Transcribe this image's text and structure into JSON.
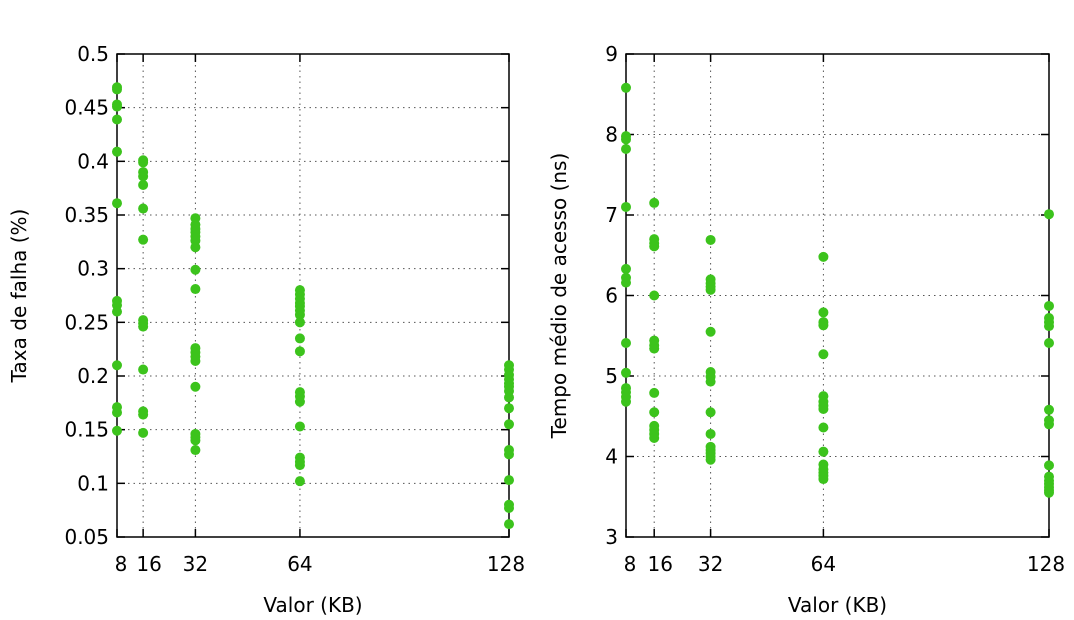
{
  "chart_data": [
    {
      "type": "scatter",
      "xlabel": "Valor (KB)",
      "ylabel": "Taxa de falha (%)",
      "xticks": [
        8,
        16,
        32,
        64,
        128
      ],
      "xlim": [
        8,
        128
      ],
      "ylim": [
        0.05,
        0.5
      ],
      "yticks": [
        0.05,
        0.1,
        0.15,
        0.2,
        0.25,
        0.3,
        0.35,
        0.4,
        0.45,
        0.5
      ],
      "ytick_labels": [
        "0.05",
        "0.1",
        "0.15",
        "0.2",
        "0.25",
        "0.3",
        "0.35",
        "0.4",
        "0.45",
        "0.5"
      ],
      "grid": true,
      "marker_color": "#3cc31c",
      "points": [
        {
          "x": 8,
          "ys": [
            0.469,
            0.467,
            0.453,
            0.451,
            0.439,
            0.409,
            0.361,
            0.27,
            0.266,
            0.26,
            0.21,
            0.171,
            0.166,
            0.149
          ]
        },
        {
          "x": 16,
          "ys": [
            0.401,
            0.399,
            0.39,
            0.386,
            0.378,
            0.356,
            0.327,
            0.252,
            0.249,
            0.246,
            0.206,
            0.167,
            0.164,
            0.147
          ]
        },
        {
          "x": 32,
          "ys": [
            0.347,
            0.341,
            0.337,
            0.334,
            0.33,
            0.326,
            0.32,
            0.299,
            0.281,
            0.226,
            0.222,
            0.218,
            0.214,
            0.19,
            0.146,
            0.143,
            0.14,
            0.131
          ]
        },
        {
          "x": 64,
          "ys": [
            0.28,
            0.276,
            0.272,
            0.268,
            0.265,
            0.261,
            0.257,
            0.25,
            0.235,
            0.223,
            0.185,
            0.181,
            0.176,
            0.153,
            0.124,
            0.12,
            0.117,
            0.102
          ]
        },
        {
          "x": 128,
          "ys": [
            0.21,
            0.206,
            0.201,
            0.197,
            0.193,
            0.19,
            0.186,
            0.18,
            0.17,
            0.155,
            0.131,
            0.127,
            0.103,
            0.08,
            0.077,
            0.062
          ]
        }
      ]
    },
    {
      "type": "scatter",
      "xlabel": "Valor (KB)",
      "ylabel": "Tempo médio de acesso (ns)",
      "xticks": [
        8,
        16,
        32,
        64,
        128
      ],
      "xlim": [
        8,
        128
      ],
      "ylim": [
        3,
        9
      ],
      "yticks": [
        3,
        4,
        5,
        6,
        7,
        8,
        9
      ],
      "ytick_labels": [
        "3",
        "4",
        "5",
        "6",
        "7",
        "8",
        "9"
      ],
      "grid": true,
      "marker_color": "#3cc31c",
      "points": [
        {
          "x": 8,
          "ys": [
            8.58,
            7.98,
            7.94,
            7.82,
            7.1,
            6.33,
            6.22,
            6.16,
            5.41,
            5.04,
            4.85,
            4.8,
            4.74,
            4.68
          ]
        },
        {
          "x": 16,
          "ys": [
            7.15,
            6.7,
            6.65,
            6.61,
            6.0,
            5.44,
            5.38,
            5.34,
            4.79,
            4.55,
            4.38,
            4.33,
            4.28,
            4.23
          ]
        },
        {
          "x": 32,
          "ys": [
            6.69,
            6.2,
            6.15,
            6.11,
            6.07,
            5.55,
            5.05,
            4.99,
            4.93,
            4.55,
            4.28,
            4.12,
            4.08,
            4.04,
            4.0,
            3.96
          ]
        },
        {
          "x": 64,
          "ys": [
            6.48,
            5.79,
            5.67,
            5.63,
            5.27,
            4.75,
            4.68,
            4.63,
            4.59,
            4.36,
            4.06,
            3.9,
            3.84,
            3.8,
            3.76,
            3.72
          ]
        },
        {
          "x": 128,
          "ys": [
            7.01,
            5.87,
            5.72,
            5.67,
            5.62,
            5.41,
            4.58,
            4.45,
            4.4,
            3.89,
            3.75,
            3.7,
            3.66,
            3.62,
            3.58,
            3.55
          ]
        }
      ]
    }
  ]
}
